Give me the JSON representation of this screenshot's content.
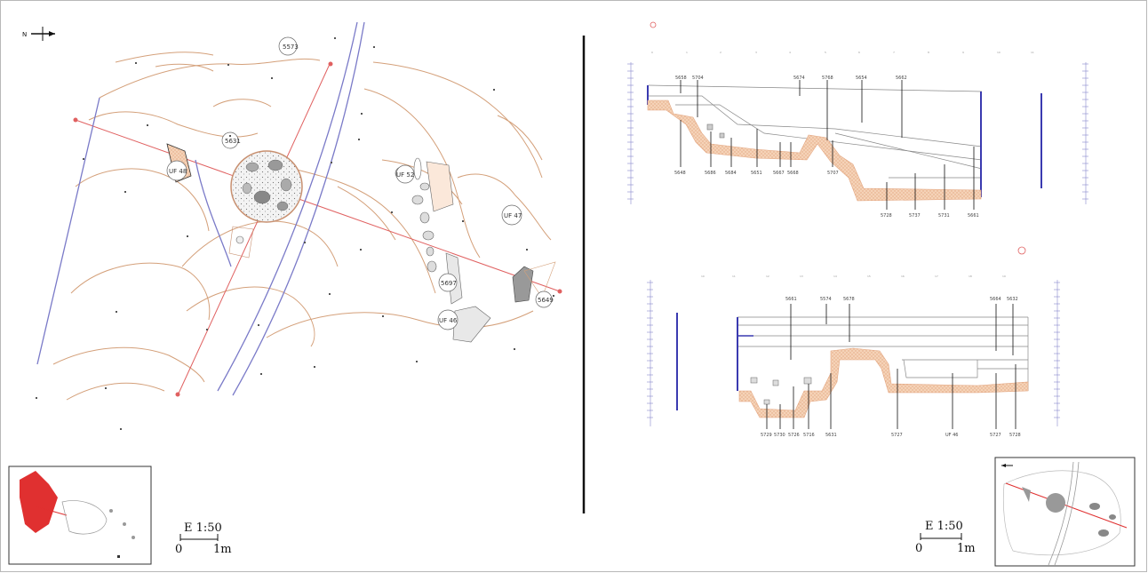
{
  "plan": {
    "features": [
      "5573",
      "5631",
      "UF 48",
      "UF 52",
      "UF 47",
      "5697",
      "UF 46",
      "5649"
    ],
    "scale": {
      "ratio": "E 1:50",
      "start": "0",
      "end": "1m"
    }
  },
  "section_1": {
    "top_labels": [
      "5658",
      "5704",
      "5674",
      "5768",
      "5654",
      "5662"
    ],
    "bottom_labels": [
      "5648",
      "5686",
      "5684",
      "5651",
      "5667",
      "5668",
      "5707",
      "5728",
      "5737",
      "5731",
      "5661"
    ]
  },
  "section_2": {
    "top_labels": [
      "5661",
      "5574",
      "5678",
      "5664",
      "5632"
    ],
    "bottom_labels": [
      "5729",
      "5730",
      "5726",
      "5716",
      "5631",
      "5727",
      "UF 46",
      "5727",
      "5728"
    ]
  },
  "section_scale": {
    "ratio": "E 1:50",
    "start": "0",
    "end": "1m"
  },
  "colors": {
    "contour": "#d4a07a",
    "section_line": "#e06060",
    "wall": "#7a7ac8",
    "cut_hatch": "#f2c9a9"
  },
  "icons": [
    "north-arrow-icon",
    "locator-map-icon"
  ]
}
